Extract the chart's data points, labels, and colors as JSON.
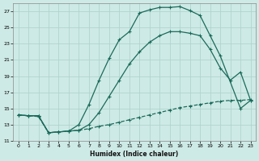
{
  "xlabel": "Humidex (Indice chaleur)",
  "background_color": "#ceeae6",
  "grid_color": "#afd4cf",
  "line_color": "#1a6b5a",
  "xlim": [
    -0.5,
    23.5
  ],
  "ylim": [
    11,
    28
  ],
  "xticks": [
    0,
    1,
    2,
    3,
    4,
    5,
    6,
    7,
    8,
    9,
    10,
    11,
    12,
    13,
    14,
    15,
    16,
    17,
    18,
    19,
    20,
    21,
    22,
    23
  ],
  "yticks": [
    11,
    13,
    15,
    17,
    19,
    21,
    23,
    25,
    27
  ],
  "line_top_x": [
    0,
    1,
    2,
    3,
    4,
    5,
    6,
    7,
    8,
    9,
    10,
    11,
    12,
    13,
    14,
    15,
    16,
    17,
    18,
    19,
    20,
    22,
    23
  ],
  "line_top_y": [
    14.2,
    14.1,
    14.1,
    12.0,
    12.1,
    12.2,
    13.0,
    15.5,
    18.5,
    21.2,
    23.5,
    24.5,
    26.8,
    27.2,
    27.5,
    27.5,
    27.6,
    27.1,
    26.5,
    24.0,
    21.5,
    15.0,
    16.0
  ],
  "line_mid_x": [
    0,
    1,
    2,
    3,
    4,
    5,
    6,
    7,
    8,
    9,
    10,
    11,
    12,
    13,
    14,
    15,
    16,
    17,
    18,
    19,
    20,
    21,
    22,
    23
  ],
  "line_mid_y": [
    14.2,
    14.1,
    14.1,
    12.0,
    12.1,
    12.2,
    12.3,
    13.0,
    14.5,
    16.5,
    18.5,
    20.5,
    22.0,
    23.2,
    24.0,
    24.5,
    24.5,
    24.3,
    24.0,
    22.3,
    20.0,
    18.5,
    19.5,
    16.0
  ],
  "line_bot_x": [
    0,
    1,
    2,
    3,
    4,
    5,
    6,
    7,
    8,
    9,
    10,
    11,
    12,
    13,
    14,
    15,
    16,
    17,
    18,
    19,
    20,
    21,
    22,
    23
  ],
  "line_bot_y": [
    14.2,
    14.1,
    14.0,
    12.0,
    12.1,
    12.2,
    12.3,
    12.5,
    12.8,
    13.0,
    13.3,
    13.6,
    13.9,
    14.2,
    14.5,
    14.8,
    15.1,
    15.3,
    15.5,
    15.7,
    15.9,
    16.0,
    16.0,
    16.1
  ]
}
